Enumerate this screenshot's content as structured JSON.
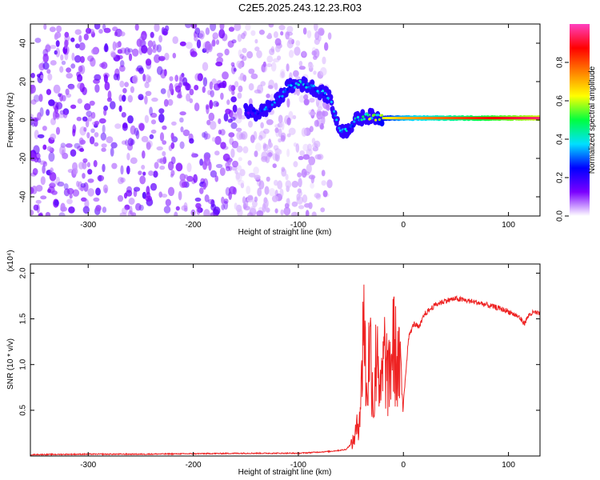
{
  "title": "C2E5.2025.243.12.23.R03",
  "chart_data": [
    {
      "type": "heatmap",
      "title": "C2E5.2025.243.12.23.R03",
      "xlabel": "Height of straight line (km)",
      "ylabel": "Frequency (Hz)",
      "xlim": [
        -355,
        130
      ],
      "ylim": [
        -50,
        50
      ],
      "xticks": [
        -300,
        -200,
        -100,
        0,
        100
      ],
      "xtick_labels": [
        "-300",
        "-200",
        "-100",
        "0",
        "100"
      ],
      "yticks": [
        -40,
        -20,
        0,
        20,
        40
      ],
      "ytick_labels": [
        "-40",
        "-20",
        "0",
        "20",
        "40"
      ],
      "colorbar": {
        "label": "Normalized spectral amplitude",
        "range": [
          0,
          1
        ],
        "ticks": [
          0.0,
          0.2,
          0.4,
          0.6,
          0.8
        ],
        "tick_labels": [
          "0.0",
          "0.2",
          "0.4",
          "0.6",
          "0.8"
        ],
        "colormap": [
          "#ffffff",
          "#7b00ff",
          "#0000ff",
          "#00e0ff",
          "#00ff40",
          "#ffff00",
          "#ff8000",
          "#ff0000",
          "#ff40c0"
        ]
      },
      "noise_region": {
        "x_from": -355,
        "x_to": -70,
        "amplitude": 0.12
      },
      "signal_track": {
        "x": [
          -150,
          -140,
          -130,
          -120,
          -110,
          -100,
          -90,
          -80,
          -70,
          -62,
          -55,
          -45,
          -35,
          -20,
          0,
          50,
          100,
          130
        ],
        "freq": [
          5,
          3,
          6,
          10,
          17,
          19,
          18,
          15,
          12,
          -4,
          -6,
          0,
          2,
          1,
          1,
          1,
          1,
          1
        ],
        "amplitude": [
          0.2,
          0.25,
          0.3,
          0.3,
          0.3,
          0.35,
          0.35,
          0.35,
          0.3,
          0.3,
          0.35,
          0.4,
          0.5,
          0.6,
          0.7,
          0.8,
          0.9,
          0.95
        ]
      }
    },
    {
      "type": "line",
      "xlabel": "Height of straight line (km)",
      "ylabel": "SNR (10 * v/v)",
      "multiplier": "(x10⁴)",
      "xlim": [
        -355,
        130
      ],
      "ylim": [
        0,
        2.1
      ],
      "xticks": [
        -300,
        -200,
        -100,
        0,
        100
      ],
      "xtick_labels": [
        "-300",
        "-200",
        "-100",
        "0",
        "100"
      ],
      "yticks": [
        0.5,
        1.0,
        1.5,
        2.0
      ],
      "ytick_labels": [
        "0.5",
        "1.0",
        "1.5",
        "2.0"
      ],
      "series": [
        {
          "name": "SNR",
          "color": "#ee2222",
          "x": [
            -355,
            -300,
            -250,
            -200,
            -150,
            -100,
            -70,
            -55,
            -48,
            -43,
            -40,
            -38,
            -35,
            -32,
            -28,
            -25,
            -22,
            -18,
            -14,
            -10,
            -6,
            -3,
            0,
            5,
            10,
            15,
            20,
            30,
            40,
            50,
            60,
            70,
            80,
            90,
            95,
            100,
            105,
            110,
            115,
            120,
            125,
            130
          ],
          "y": [
            0.015,
            0.02,
            0.02,
            0.025,
            0.03,
            0.03,
            0.05,
            0.07,
            0.15,
            0.35,
            0.7,
            1.7,
            0.6,
            1.3,
            0.5,
            1.4,
            0.6,
            1.1,
            0.8,
            1.25,
            1.0,
            0.9,
            0.6,
            1.3,
            1.45,
            1.4,
            1.55,
            1.65,
            1.7,
            1.72,
            1.7,
            1.68,
            1.65,
            1.62,
            1.6,
            1.58,
            1.55,
            1.52,
            1.45,
            1.55,
            1.57,
            1.55
          ]
        }
      ]
    }
  ]
}
